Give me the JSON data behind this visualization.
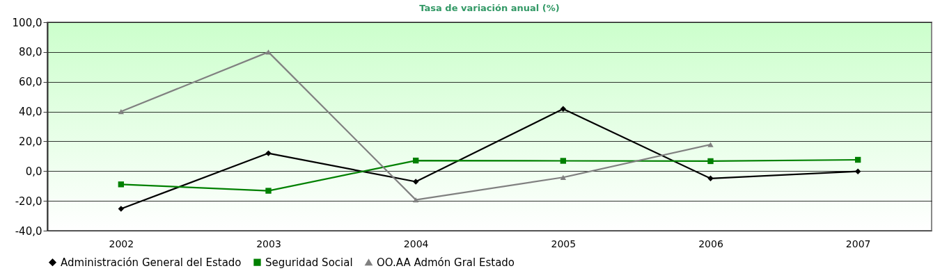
{
  "chart_data": {
    "type": "line",
    "title": "Tasa de variación anual (%)",
    "categories": [
      "2002",
      "2003",
      "2004",
      "2005",
      "2006",
      "2007"
    ],
    "series": [
      {
        "name": "Administración General del Estado",
        "color": "#000000",
        "marker": "diamond",
        "values": [
          -25.3,
          12,
          -7.1,
          41.8,
          -4.9,
          -0.2
        ]
      },
      {
        "name": "Seguridad Social",
        "color": "#008000",
        "marker": "square",
        "values": [
          -8.9,
          -13.2,
          7.1,
          6.9,
          6.7,
          7.6
        ]
      },
      {
        "name": "OO.AA Admón Gral Estado",
        "color": "#808080",
        "marker": "triangle",
        "values": [
          40,
          80,
          -19.3,
          -4.2,
          17.8,
          null
        ]
      }
    ],
    "ylim": [
      -40,
      100
    ],
    "yticks": [
      {
        "value": -40,
        "label": "-40,0"
      },
      {
        "value": -20,
        "label": "-20,0"
      },
      {
        "value": 0,
        "label": "0,0"
      },
      {
        "value": 20,
        "label": "20,0"
      },
      {
        "value": 40,
        "label": "40,0"
      },
      {
        "value": 60,
        "label": "60,0"
      },
      {
        "value": 80,
        "label": "80,0"
      },
      {
        "value": 100,
        "label": "100,0"
      }
    ],
    "grid": "y",
    "legend": "bottom",
    "line_style": "solid"
  }
}
